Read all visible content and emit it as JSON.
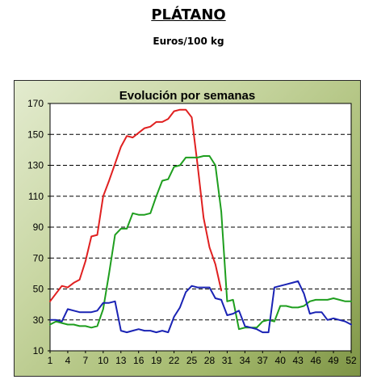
{
  "header": {
    "title": "PLÁTANO",
    "subtitle": "Euros/100 kg"
  },
  "chart_data": {
    "type": "line",
    "title": "Evolución por semanas",
    "xlabel": "",
    "ylabel": "",
    "xlim": [
      1,
      52
    ],
    "ylim": [
      10,
      170
    ],
    "x_ticks": [
      1,
      4,
      7,
      10,
      13,
      16,
      19,
      22,
      25,
      28,
      31,
      34,
      37,
      40,
      43,
      46,
      49,
      52
    ],
    "y_ticks": [
      10,
      30,
      50,
      70,
      90,
      110,
      130,
      150,
      170
    ],
    "grid": "horizontal dashed",
    "series": [
      {
        "color": "#e02020",
        "points": [
          [
            1,
            42
          ],
          [
            2,
            47
          ],
          [
            3,
            52
          ],
          [
            4,
            51
          ],
          [
            5,
            54
          ],
          [
            6,
            56
          ],
          [
            7,
            68
          ],
          [
            8,
            84
          ],
          [
            9,
            85
          ],
          [
            10,
            110
          ],
          [
            11,
            120
          ],
          [
            12,
            131
          ],
          [
            13,
            142
          ],
          [
            14,
            149
          ],
          [
            15,
            148
          ],
          [
            16,
            151
          ],
          [
            17,
            154
          ],
          [
            18,
            155
          ],
          [
            19,
            158
          ],
          [
            20,
            158
          ],
          [
            21,
            160
          ],
          [
            22,
            165
          ],
          [
            23,
            166
          ],
          [
            24,
            166
          ],
          [
            25,
            161
          ],
          [
            26,
            130
          ],
          [
            27,
            96
          ],
          [
            28,
            77
          ],
          [
            29,
            66
          ],
          [
            30,
            49
          ]
        ]
      },
      {
        "color": "#1e9e1e",
        "points": [
          [
            1,
            27
          ],
          [
            2,
            29
          ],
          [
            3,
            28
          ],
          [
            4,
            27
          ],
          [
            5,
            27
          ],
          [
            6,
            26
          ],
          [
            7,
            26
          ],
          [
            8,
            25
          ],
          [
            9,
            26
          ],
          [
            10,
            37
          ],
          [
            11,
            60
          ],
          [
            12,
            85
          ],
          [
            13,
            89
          ],
          [
            14,
            89
          ],
          [
            15,
            99
          ],
          [
            16,
            98
          ],
          [
            17,
            98
          ],
          [
            18,
            99
          ],
          [
            19,
            110
          ],
          [
            20,
            120
          ],
          [
            21,
            121
          ],
          [
            22,
            129
          ],
          [
            23,
            130
          ],
          [
            24,
            135
          ],
          [
            25,
            135
          ],
          [
            26,
            135
          ],
          [
            27,
            136
          ],
          [
            28,
            136
          ],
          [
            29,
            130
          ],
          [
            30,
            100
          ],
          [
            31,
            42
          ],
          [
            32,
            43
          ],
          [
            33,
            24
          ],
          [
            34,
            25
          ],
          [
            35,
            25
          ],
          [
            36,
            25
          ],
          [
            37,
            29
          ],
          [
            38,
            30
          ],
          [
            39,
            29
          ],
          [
            40,
            39
          ],
          [
            41,
            39
          ],
          [
            42,
            38
          ],
          [
            43,
            38
          ],
          [
            44,
            39
          ],
          [
            45,
            42
          ],
          [
            46,
            43
          ],
          [
            47,
            43
          ],
          [
            48,
            43
          ],
          [
            49,
            44
          ],
          [
            50,
            43
          ],
          [
            51,
            42
          ],
          [
            52,
            42
          ]
        ]
      },
      {
        "color": "#1a23b4",
        "points": [
          [
            1,
            30
          ],
          [
            2,
            30
          ],
          [
            3,
            29
          ],
          [
            4,
            37
          ],
          [
            5,
            36
          ],
          [
            6,
            35
          ],
          [
            7,
            35
          ],
          [
            8,
            35
          ],
          [
            9,
            36
          ],
          [
            10,
            41
          ],
          [
            11,
            41
          ],
          [
            12,
            42
          ],
          [
            13,
            23
          ],
          [
            14,
            22
          ],
          [
            15,
            23
          ],
          [
            16,
            24
          ],
          [
            17,
            23
          ],
          [
            18,
            23
          ],
          [
            19,
            22
          ],
          [
            20,
            23
          ],
          [
            21,
            22
          ],
          [
            22,
            32
          ],
          [
            23,
            38
          ],
          [
            24,
            48
          ],
          [
            25,
            52
          ],
          [
            26,
            51
          ],
          [
            27,
            51
          ],
          [
            28,
            51
          ],
          [
            29,
            44
          ],
          [
            30,
            43
          ],
          [
            31,
            33
          ],
          [
            32,
            34
          ],
          [
            33,
            36
          ],
          [
            34,
            26
          ],
          [
            35,
            25
          ],
          [
            36,
            24
          ],
          [
            37,
            22
          ],
          [
            38,
            22
          ],
          [
            39,
            51
          ],
          [
            40,
            52
          ],
          [
            41,
            53
          ],
          [
            42,
            54
          ],
          [
            43,
            55
          ],
          [
            44,
            47
          ],
          [
            45,
            34
          ],
          [
            46,
            35
          ],
          [
            47,
            35
          ],
          [
            48,
            30
          ],
          [
            49,
            31
          ],
          [
            50,
            30
          ],
          [
            51,
            29
          ],
          [
            52,
            27
          ]
        ]
      }
    ]
  }
}
